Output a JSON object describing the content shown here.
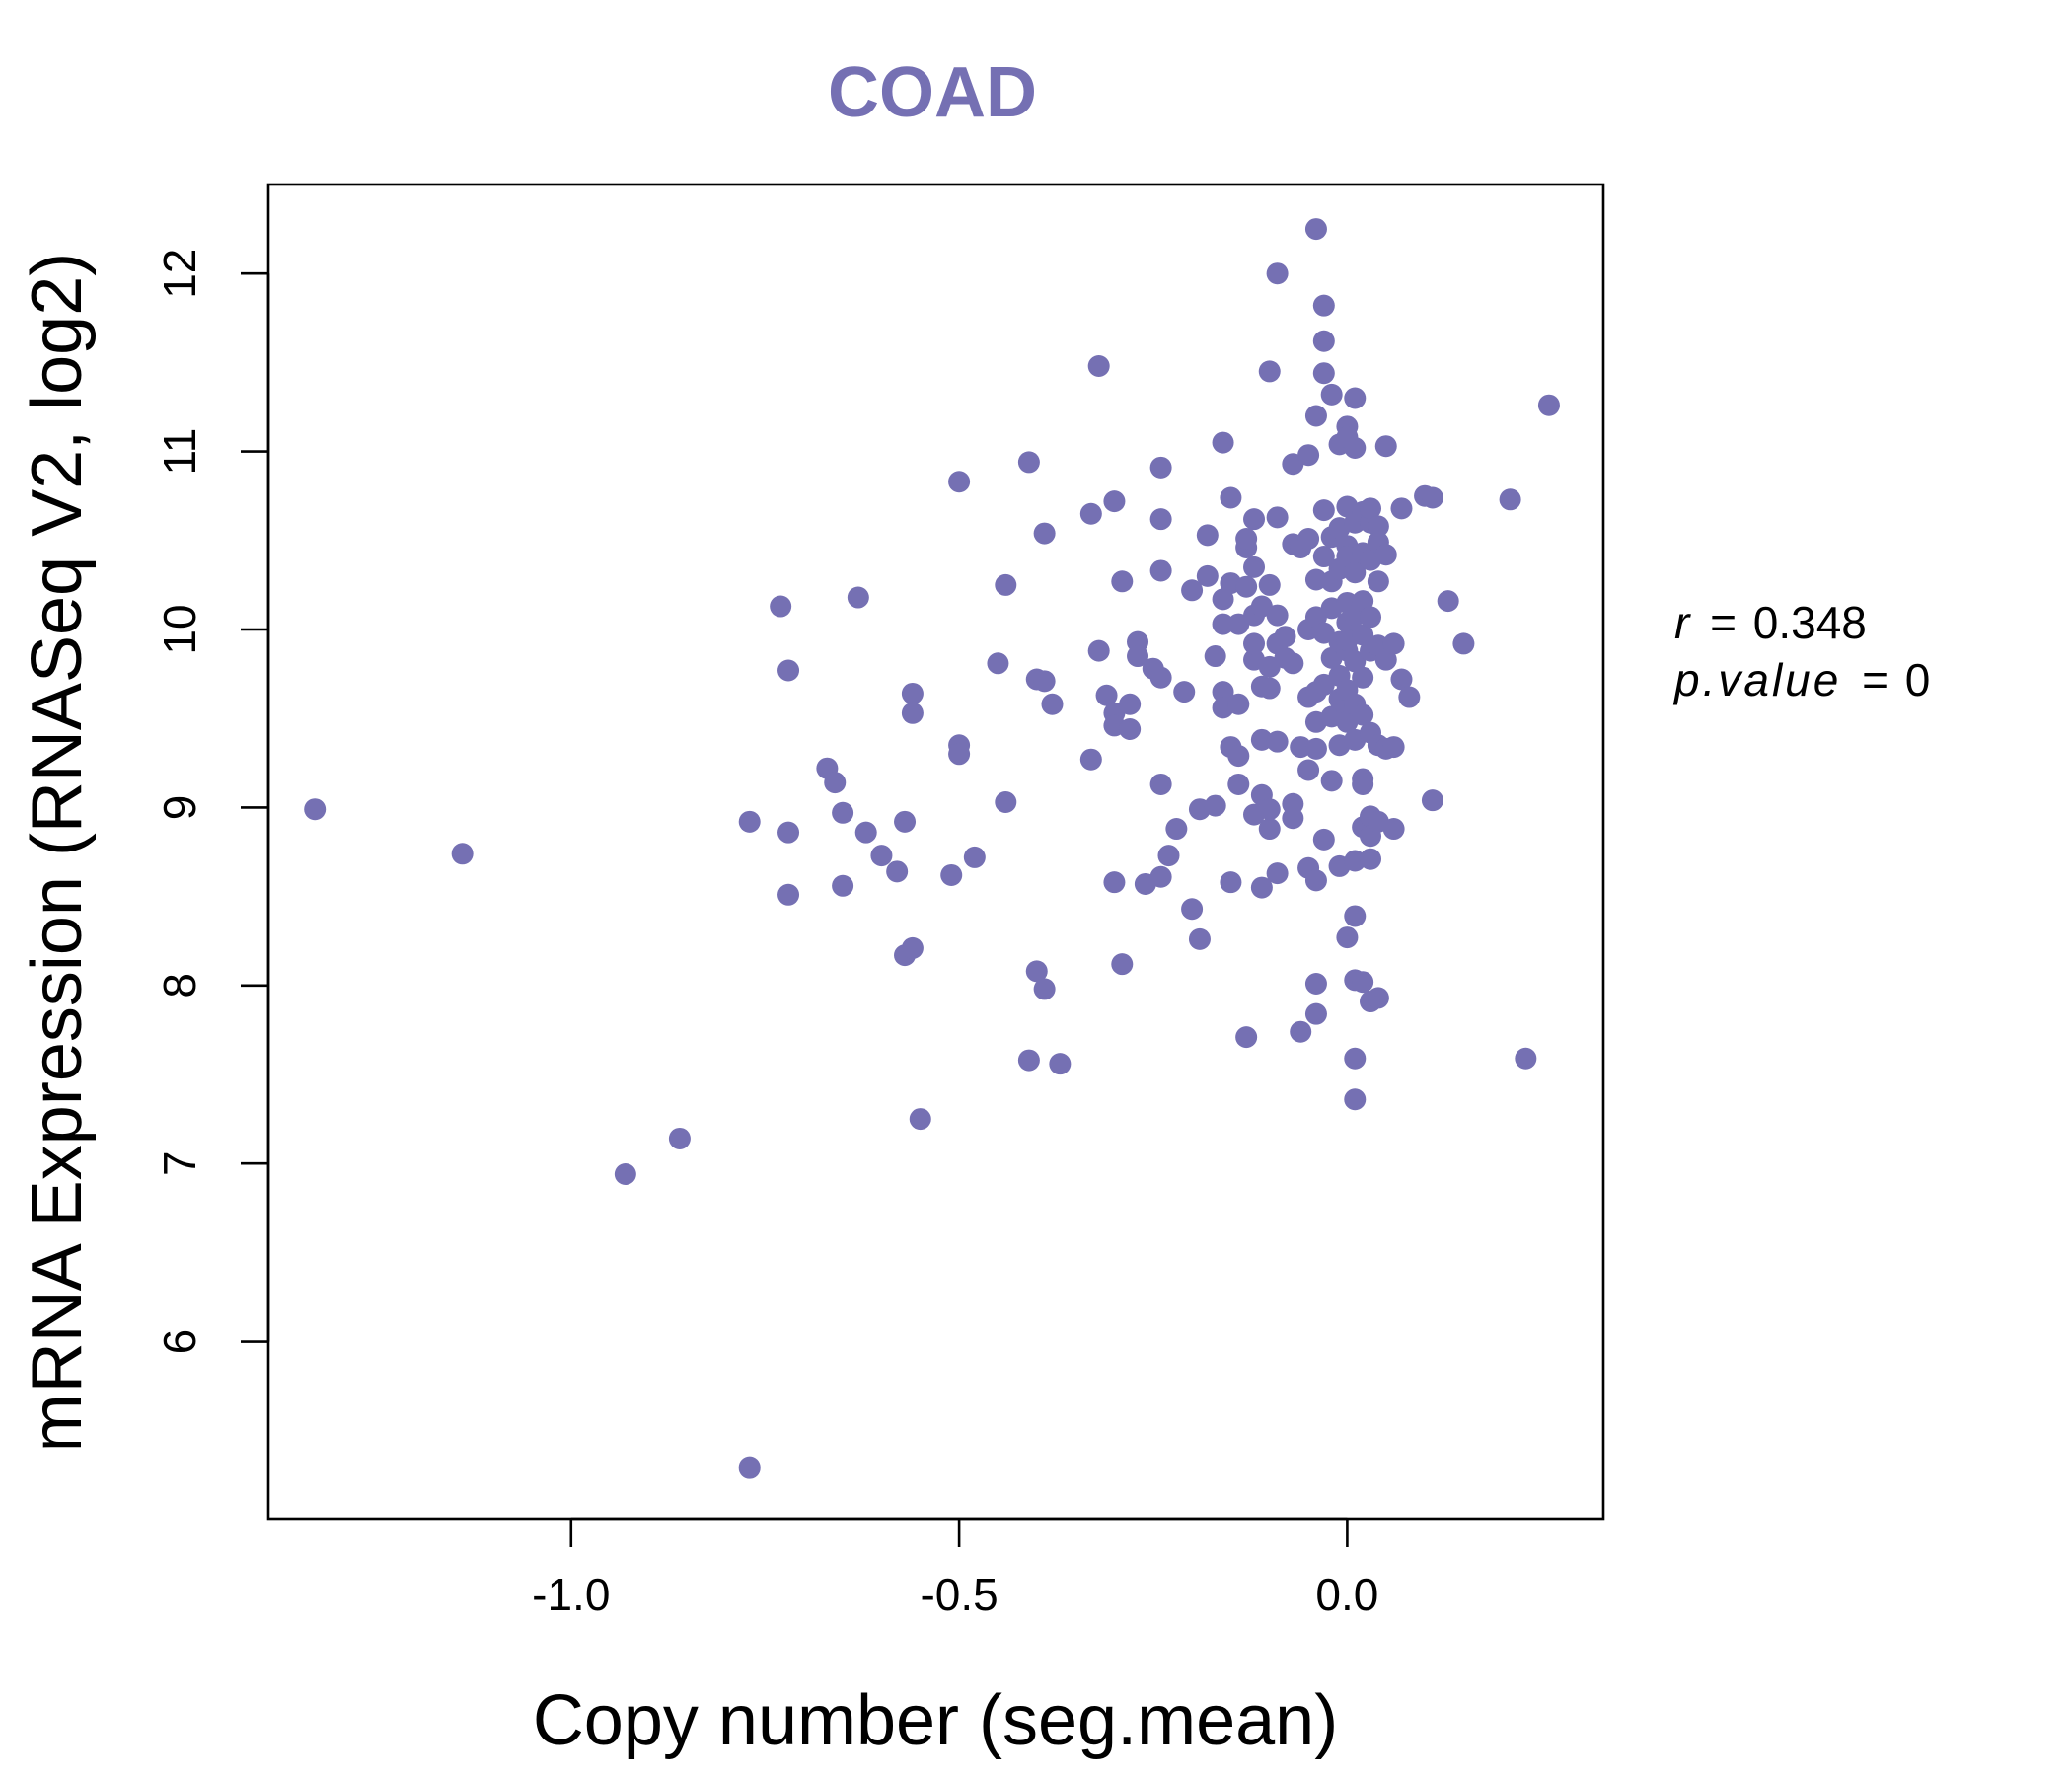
{
  "chart_data": {
    "type": "scatter",
    "title": "COAD",
    "xlabel": "Copy number (seg.mean)",
    "ylabel": "mRNA Expression (RNASeq V2, log2)",
    "xlim": [
      -1.39,
      0.33
    ],
    "ylim": [
      5.0,
      12.5
    ],
    "x_ticks": [
      -1.0,
      -0.5,
      0.0
    ],
    "x_tick_labels": [
      "-1.0",
      "-0.5",
      "0.0"
    ],
    "y_ticks": [
      6,
      7,
      8,
      9,
      10,
      11,
      12
    ],
    "y_tick_labels": [
      "6",
      "7",
      "8",
      "9",
      "10",
      "11",
      "12"
    ],
    "point_color": "#7570b3",
    "stats": {
      "r_label": "r",
      "r_value": "0.348",
      "p_label": "p.value",
      "p_value": "0"
    },
    "points": [
      [
        -1.33,
        8.99
      ],
      [
        -1.14,
        8.74
      ],
      [
        -0.93,
        6.94
      ],
      [
        -0.86,
        7.14
      ],
      [
        -0.77,
        5.29
      ],
      [
        -0.77,
        8.92
      ],
      [
        -0.73,
        10.13
      ],
      [
        -0.72,
        9.77
      ],
      [
        -0.72,
        8.86
      ],
      [
        -0.72,
        8.51
      ],
      [
        -0.67,
        9.22
      ],
      [
        -0.66,
        9.14
      ],
      [
        -0.65,
        8.97
      ],
      [
        -0.65,
        8.56
      ],
      [
        -0.63,
        10.18
      ],
      [
        -0.62,
        8.86
      ],
      [
        -0.6,
        8.73
      ],
      [
        -0.58,
        8.64
      ],
      [
        -0.57,
        8.92
      ],
      [
        -0.57,
        8.17
      ],
      [
        -0.56,
        8.21
      ],
      [
        -0.56,
        9.64
      ],
      [
        -0.56,
        9.53
      ],
      [
        -0.55,
        7.25
      ],
      [
        -0.51,
        8.62
      ],
      [
        -0.5,
        10.83
      ],
      [
        -0.5,
        9.35
      ],
      [
        -0.5,
        9.3
      ],
      [
        -0.48,
        8.72
      ],
      [
        -0.45,
        9.81
      ],
      [
        -0.44,
        10.25
      ],
      [
        -0.44,
        9.03
      ],
      [
        -0.41,
        10.94
      ],
      [
        -0.41,
        7.58
      ],
      [
        -0.4,
        9.72
      ],
      [
        -0.4,
        8.08
      ],
      [
        -0.39,
        9.71
      ],
      [
        -0.39,
        7.98
      ],
      [
        -0.39,
        10.54
      ],
      [
        -0.38,
        9.58
      ],
      [
        -0.37,
        7.56
      ],
      [
        -0.33,
        10.65
      ],
      [
        -0.33,
        9.27
      ],
      [
        -0.32,
        9.88
      ],
      [
        -0.32,
        11.48
      ],
      [
        -0.31,
        9.63
      ],
      [
        -0.3,
        10.72
      ],
      [
        -0.3,
        9.53
      ],
      [
        -0.3,
        9.46
      ],
      [
        -0.3,
        8.58
      ],
      [
        -0.29,
        10.27
      ],
      [
        -0.29,
        8.12
      ],
      [
        -0.28,
        9.58
      ],
      [
        -0.28,
        9.44
      ],
      [
        -0.27,
        9.93
      ],
      [
        -0.27,
        9.85
      ],
      [
        -0.26,
        8.57
      ],
      [
        -0.25,
        9.78
      ],
      [
        -0.24,
        10.91
      ],
      [
        -0.24,
        10.62
      ],
      [
        -0.24,
        10.33
      ],
      [
        -0.24,
        9.73
      ],
      [
        -0.24,
        9.13
      ],
      [
        -0.24,
        8.61
      ],
      [
        -0.23,
        8.73
      ],
      [
        -0.22,
        8.88
      ],
      [
        -0.21,
        9.65
      ],
      [
        -0.2,
        10.22
      ],
      [
        -0.2,
        8.43
      ],
      [
        -0.19,
        8.99
      ],
      [
        -0.19,
        8.26
      ],
      [
        -0.18,
        10.53
      ],
      [
        -0.18,
        10.3
      ],
      [
        -0.17,
        9.85
      ],
      [
        -0.17,
        9.01
      ],
      [
        -0.16,
        11.05
      ],
      [
        -0.16,
        10.17
      ],
      [
        -0.16,
        10.03
      ],
      [
        -0.16,
        9.65
      ],
      [
        -0.16,
        9.56
      ],
      [
        -0.15,
        10.26
      ],
      [
        -0.15,
        9.34
      ],
      [
        -0.15,
        8.58
      ],
      [
        -0.15,
        10.74
      ],
      [
        -0.14,
        9.13
      ],
      [
        -0.14,
        9.29
      ],
      [
        -0.14,
        9.58
      ],
      [
        -0.14,
        10.03
      ],
      [
        -0.13,
        7.71
      ],
      [
        -0.13,
        10.24
      ],
      [
        -0.13,
        10.46
      ],
      [
        -0.13,
        10.51
      ],
      [
        -0.12,
        10.62
      ],
      [
        -0.12,
        10.08
      ],
      [
        -0.12,
        9.83
      ],
      [
        -0.12,
        9.92
      ],
      [
        -0.12,
        10.35
      ],
      [
        -0.12,
        8.96
      ],
      [
        -0.11,
        10.13
      ],
      [
        -0.11,
        9.68
      ],
      [
        -0.11,
        9.38
      ],
      [
        -0.11,
        9.07
      ],
      [
        -0.11,
        8.55
      ],
      [
        -0.1,
        11.45
      ],
      [
        -0.1,
        10.25
      ],
      [
        -0.1,
        9.79
      ],
      [
        -0.1,
        9.67
      ],
      [
        -0.1,
        8.88
      ],
      [
        -0.1,
        8.99
      ],
      [
        -0.09,
        12.0
      ],
      [
        -0.09,
        10.63
      ],
      [
        -0.09,
        10.08
      ],
      [
        -0.09,
        9.92
      ],
      [
        -0.09,
        9.37
      ],
      [
        -0.09,
        8.63
      ],
      [
        -0.08,
        9.96
      ],
      [
        -0.08,
        9.84
      ],
      [
        -0.07,
        10.48
      ],
      [
        -0.07,
        10.93
      ],
      [
        -0.07,
        9.81
      ],
      [
        -0.07,
        9.02
      ],
      [
        -0.07,
        8.94
      ],
      [
        -0.06,
        10.46
      ],
      [
        -0.06,
        9.34
      ],
      [
        -0.06,
        7.74
      ],
      [
        -0.05,
        10.98
      ],
      [
        -0.05,
        10.51
      ],
      [
        -0.05,
        10.0
      ],
      [
        -0.05,
        9.62
      ],
      [
        -0.05,
        9.21
      ],
      [
        -0.05,
        8.66
      ],
      [
        -0.04,
        12.25
      ],
      [
        -0.04,
        11.2
      ],
      [
        -0.04,
        10.28
      ],
      [
        -0.04,
        10.07
      ],
      [
        -0.04,
        9.65
      ],
      [
        -0.04,
        9.48
      ],
      [
        -0.04,
        9.33
      ],
      [
        -0.04,
        8.59
      ],
      [
        -0.04,
        8.01
      ],
      [
        -0.04,
        7.84
      ],
      [
        -0.03,
        11.82
      ],
      [
        -0.03,
        11.62
      ],
      [
        -0.03,
        10.67
      ],
      [
        -0.03,
        10.41
      ],
      [
        -0.03,
        9.98
      ],
      [
        -0.03,
        9.69
      ],
      [
        -0.03,
        8.82
      ],
      [
        -0.03,
        11.44
      ],
      [
        -0.02,
        10.52
      ],
      [
        -0.02,
        10.12
      ],
      [
        -0.02,
        9.84
      ],
      [
        -0.02,
        9.51
      ],
      [
        -0.02,
        9.15
      ],
      [
        -0.02,
        11.32
      ],
      [
        -0.02,
        10.27
      ],
      [
        -0.01,
        11.04
      ],
      [
        -0.01,
        10.57
      ],
      [
        -0.01,
        10.34
      ],
      [
        -0.01,
        9.93
      ],
      [
        -0.01,
        9.74
      ],
      [
        -0.01,
        9.61
      ],
      [
        -0.01,
        9.35
      ],
      [
        -0.01,
        8.67
      ],
      [
        -0.0,
        11.14
      ],
      [
        -0.0,
        10.47
      ],
      [
        -0.0,
        10.04
      ],
      [
        -0.0,
        9.88
      ],
      [
        -0.0,
        9.55
      ],
      [
        -0.0,
        8.27
      ],
      [
        0.0,
        11.08
      ],
      [
        0.0,
        10.69
      ],
      [
        0.0,
        10.41
      ],
      [
        0.0,
        10.15
      ],
      [
        0.0,
        9.94
      ],
      [
        0.0,
        9.66
      ],
      [
        0.0,
        9.48
      ],
      [
        0.01,
        11.3
      ],
      [
        0.01,
        11.02
      ],
      [
        0.01,
        10.6
      ],
      [
        0.01,
        10.32
      ],
      [
        0.01,
        10.08
      ],
      [
        0.01,
        9.82
      ],
      [
        0.01,
        9.58
      ],
      [
        0.01,
        9.38
      ],
      [
        0.01,
        8.39
      ],
      [
        0.01,
        8.03
      ],
      [
        0.01,
        7.59
      ],
      [
        0.01,
        7.36
      ],
      [
        0.01,
        8.7
      ],
      [
        0.02,
        10.66
      ],
      [
        0.02,
        10.43
      ],
      [
        0.02,
        10.16
      ],
      [
        0.02,
        9.97
      ],
      [
        0.02,
        9.73
      ],
      [
        0.02,
        9.52
      ],
      [
        0.02,
        9.16
      ],
      [
        0.02,
        8.89
      ],
      [
        0.02,
        9.13
      ],
      [
        0.02,
        8.02
      ],
      [
        0.03,
        10.6
      ],
      [
        0.03,
        10.07
      ],
      [
        0.03,
        9.88
      ],
      [
        0.03,
        9.42
      ],
      [
        0.03,
        8.95
      ],
      [
        0.03,
        8.84
      ],
      [
        0.03,
        8.71
      ],
      [
        0.03,
        7.91
      ],
      [
        0.03,
        10.68
      ],
      [
        0.03,
        10.39
      ],
      [
        0.04,
        10.58
      ],
      [
        0.04,
        10.27
      ],
      [
        0.04,
        9.91
      ],
      [
        0.04,
        9.35
      ],
      [
        0.04,
        8.92
      ],
      [
        0.04,
        7.93
      ],
      [
        0.04,
        10.49
      ],
      [
        0.05,
        11.03
      ],
      [
        0.05,
        10.42
      ],
      [
        0.05,
        9.83
      ],
      [
        0.05,
        9.33
      ],
      [
        0.06,
        9.92
      ],
      [
        0.06,
        9.34
      ],
      [
        0.06,
        8.88
      ],
      [
        0.07,
        10.68
      ],
      [
        0.07,
        9.72
      ],
      [
        0.08,
        9.62
      ],
      [
        0.1,
        10.75
      ],
      [
        0.11,
        10.74
      ],
      [
        0.11,
        9.04
      ],
      [
        0.13,
        10.16
      ],
      [
        0.15,
        9.92
      ],
      [
        0.21,
        10.73
      ],
      [
        0.23,
        7.59
      ],
      [
        0.26,
        11.26
      ]
    ]
  }
}
